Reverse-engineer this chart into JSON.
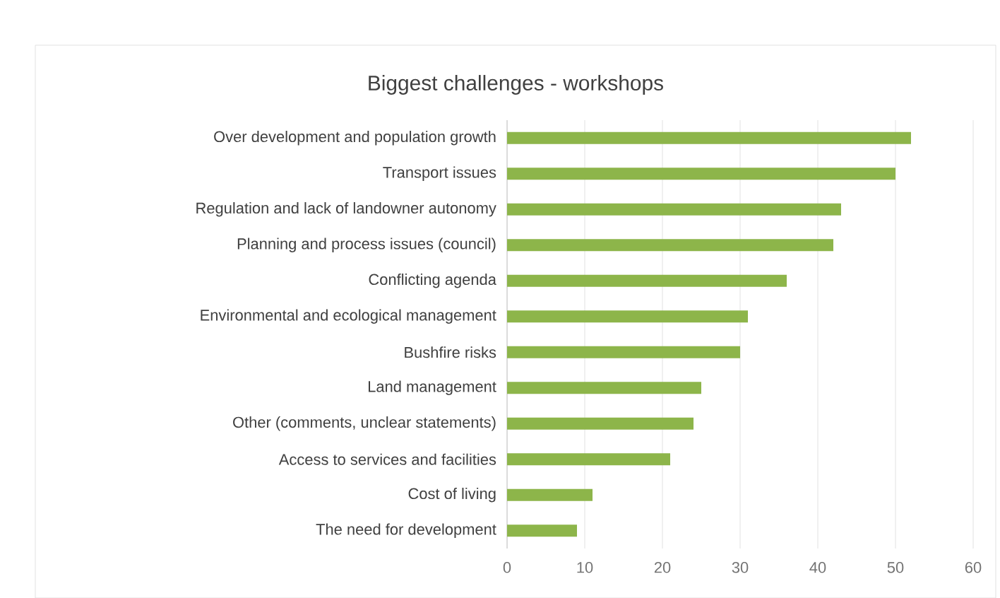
{
  "chart_data": {
    "type": "bar",
    "orientation": "horizontal",
    "title": "Biggest challenges - workshops",
    "categories": [
      "Over development and population growth",
      "Transport issues",
      "Regulation and lack of landowner autonomy",
      "Planning and process issues (council)",
      "Conflicting agenda",
      "Environmental and ecological management",
      "Bushfire risks",
      "Land management",
      "Other (comments, unclear statements)",
      "Access to services and facilities",
      "Cost of living",
      "The need for development"
    ],
    "values": [
      52,
      50,
      43,
      42,
      36,
      31,
      30,
      25,
      24,
      21,
      11,
      9
    ],
    "color": "#8db54a",
    "xlim": [
      0,
      60
    ],
    "xticks": [
      0,
      10,
      20,
      30,
      40,
      50,
      60
    ],
    "grid": "x"
  }
}
